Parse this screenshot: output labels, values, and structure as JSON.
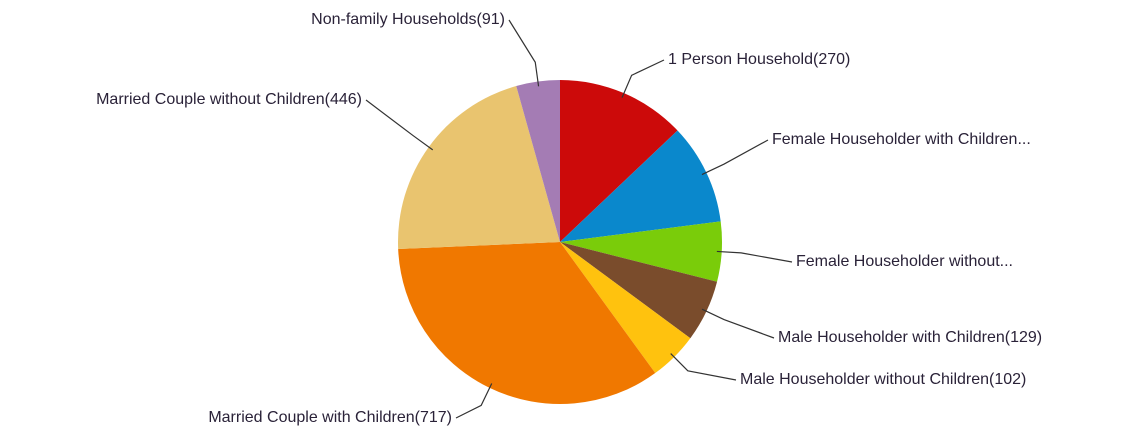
{
  "chart_data": {
    "type": "pie",
    "labels": [
      "1 Person Household(270)",
      "Female Householder with Children...",
      "Female Householder without...",
      "Male Householder with Children(129)",
      "Male Householder without Children(102)",
      "Married Couple with Children(717)",
      "Married Couple without Children(446)",
      "Non-family Households(91)"
    ],
    "values": [
      270,
      210,
      125,
      129,
      102,
      717,
      446,
      91
    ],
    "colors": [
      "#cc0a0a",
      "#0a88cc",
      "#7acc0a",
      "#7a4c2c",
      "#ffc20e",
      "#f07800",
      "#e9c46f",
      "#a47cb4"
    ]
  }
}
